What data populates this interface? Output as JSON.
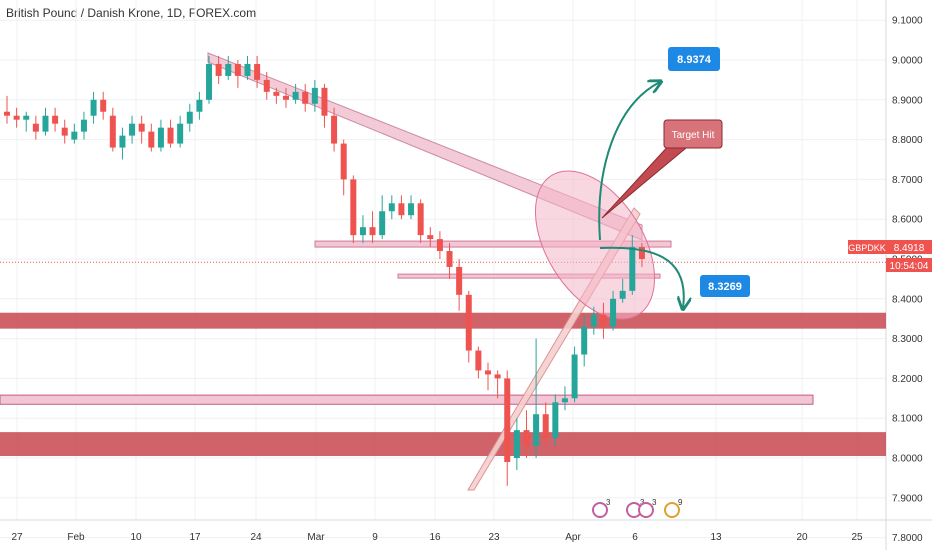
{
  "chart_data": {
    "type": "candlestick",
    "title": "British Pound / Danish Krone, 1D, FOREX.com",
    "symbol": "GBPDKK",
    "last_price": "8.4918",
    "countdown": "10:54:04",
    "y_ticks": [
      "9.1000",
      "9.0000",
      "8.9000",
      "8.8000",
      "8.7000",
      "8.6000",
      "8.5000",
      "8.4000",
      "8.3000",
      "8.2000",
      "8.1000",
      "8.0000",
      "7.9000",
      "7.8000"
    ],
    "y_tick_values": [
      9.1,
      9.0,
      8.9,
      8.8,
      8.7,
      8.6,
      8.5,
      8.4,
      8.3,
      8.2,
      8.1,
      8.0,
      7.9,
      7.8
    ],
    "x_ticks": [
      "27",
      "Feb",
      "10",
      "17",
      "24",
      "Mar",
      "9",
      "16",
      "23",
      "Apr",
      "6",
      "13",
      "20",
      "25"
    ],
    "ylim": [
      7.74,
      9.16
    ],
    "candles": [
      [
        8.87,
        8.86,
        8.91,
        8.84
      ],
      [
        8.86,
        8.85,
        8.88,
        8.83
      ],
      [
        8.85,
        8.86,
        8.87,
        8.82
      ],
      [
        8.84,
        8.82,
        8.86,
        8.8
      ],
      [
        8.82,
        8.86,
        8.88,
        8.81
      ],
      [
        8.86,
        8.84,
        8.88,
        8.82
      ],
      [
        8.83,
        8.81,
        8.85,
        8.79
      ],
      [
        8.8,
        8.82,
        8.84,
        8.79
      ],
      [
        8.82,
        8.85,
        8.87,
        8.8
      ],
      [
        8.86,
        8.9,
        8.92,
        8.84
      ],
      [
        8.9,
        8.87,
        8.92,
        8.85
      ],
      [
        8.86,
        8.78,
        8.88,
        8.77
      ],
      [
        8.78,
        8.81,
        8.83,
        8.75
      ],
      [
        8.81,
        8.84,
        8.86,
        8.79
      ],
      [
        8.84,
        8.82,
        8.86,
        8.79
      ],
      [
        8.82,
        8.78,
        8.84,
        8.77
      ],
      [
        8.78,
        8.83,
        8.85,
        8.77
      ],
      [
        8.83,
        8.79,
        8.85,
        8.78
      ],
      [
        8.79,
        8.84,
        8.86,
        8.78
      ],
      [
        8.84,
        8.87,
        8.89,
        8.82
      ],
      [
        8.87,
        8.9,
        8.92,
        8.85
      ],
      [
        8.9,
        8.99,
        9.01,
        8.89
      ],
      [
        8.99,
        8.96,
        9.01,
        8.94
      ],
      [
        8.96,
        8.99,
        9.01,
        8.95
      ],
      [
        8.99,
        8.96,
        9.0,
        8.93
      ],
      [
        8.96,
        8.99,
        9.01,
        8.95
      ],
      [
        8.99,
        8.95,
        9.01,
        8.93
      ],
      [
        8.95,
        8.92,
        8.97,
        8.9
      ],
      [
        8.92,
        8.91,
        8.93,
        8.89
      ],
      [
        8.91,
        8.9,
        8.93,
        8.88
      ],
      [
        8.9,
        8.92,
        8.94,
        8.89
      ],
      [
        8.92,
        8.89,
        8.94,
        8.87
      ],
      [
        8.89,
        8.93,
        8.95,
        8.87
      ],
      [
        8.93,
        8.86,
        8.94,
        8.83
      ],
      [
        8.86,
        8.79,
        8.88,
        8.77
      ],
      [
        8.79,
        8.7,
        8.8,
        8.66
      ],
      [
        8.7,
        8.56,
        8.71,
        8.54
      ],
      [
        8.56,
        8.58,
        8.61,
        8.54
      ],
      [
        8.58,
        8.56,
        8.62,
        8.54
      ],
      [
        8.56,
        8.62,
        8.66,
        8.55
      ],
      [
        8.62,
        8.64,
        8.66,
        8.6
      ],
      [
        8.64,
        8.61,
        8.66,
        8.6
      ],
      [
        8.61,
        8.64,
        8.66,
        8.6
      ],
      [
        8.64,
        8.56,
        8.65,
        8.54
      ],
      [
        8.56,
        8.55,
        8.58,
        8.53
      ],
      [
        8.55,
        8.52,
        8.57,
        8.5
      ],
      [
        8.52,
        8.48,
        8.54,
        8.45
      ],
      [
        8.48,
        8.41,
        8.5,
        8.37
      ],
      [
        8.41,
        8.27,
        8.42,
        8.24
      ],
      [
        8.27,
        8.22,
        8.28,
        8.2
      ],
      [
        8.22,
        8.21,
        8.24,
        8.17
      ],
      [
        8.21,
        8.2,
        8.22,
        8.15
      ],
      [
        8.2,
        7.99,
        8.22,
        7.93
      ],
      [
        8.0,
        8.07,
        8.1,
        7.97
      ],
      [
        8.07,
        8.03,
        8.12,
        8.0
      ],
      [
        8.03,
        8.11,
        8.3,
        8.0
      ],
      [
        8.11,
        8.05,
        8.14,
        8.02
      ],
      [
        8.05,
        8.14,
        8.16,
        8.03
      ],
      [
        8.14,
        8.15,
        8.18,
        8.12
      ],
      [
        8.15,
        8.26,
        8.28,
        8.14
      ],
      [
        8.26,
        8.33,
        8.36,
        8.23
      ],
      [
        8.33,
        8.36,
        8.38,
        8.31
      ],
      [
        8.36,
        8.33,
        8.39,
        8.3
      ],
      [
        8.33,
        8.4,
        8.42,
        8.32
      ],
      [
        8.4,
        8.42,
        8.45,
        8.39
      ],
      [
        8.42,
        8.53,
        8.56,
        8.41
      ],
      [
        8.53,
        8.5,
        8.54,
        8.48
      ]
    ]
  },
  "annotations": {
    "target_up": "8.9374",
    "target_down": "8.3269",
    "target_hit": "Target Hit",
    "event_badges": [
      "3",
      "3",
      "3",
      "9"
    ]
  },
  "colors": {
    "up": "#26a69a",
    "down": "#ef5350",
    "zone": "#c8474f",
    "zone_light": "#f2c6d2",
    "callout": "#1e88e5",
    "arrow": "#1f8a76",
    "ellipse": "#f4b6c8",
    "price_tag": "#ef5350"
  }
}
